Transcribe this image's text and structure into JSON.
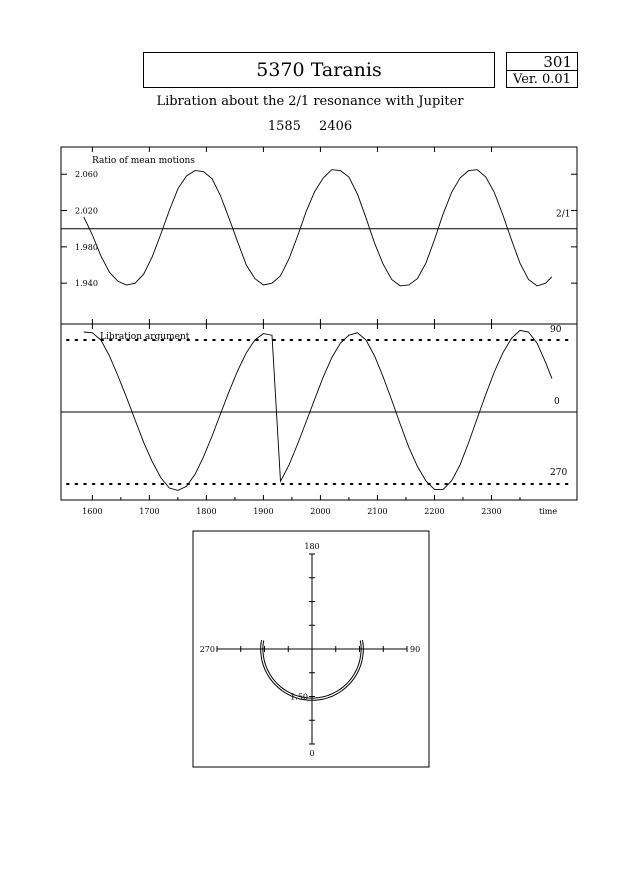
{
  "header": {
    "title": "5370 Taranis",
    "number": "301",
    "version": "Ver. 0.01",
    "subtitle": "Libration about the 2/1 resonance with Jupiter",
    "date_range": "1585 2406"
  },
  "chart_data": [
    {
      "type": "line",
      "panel": "ratio",
      "title": "Ratio of mean motions",
      "xlabel": "time",
      "xlim": [
        1545,
        2450
      ],
      "ylim": [
        1.895,
        2.09
      ],
      "ytick_labels": [
        "2.060",
        "2.020",
        "1.980",
        "1.940"
      ],
      "yticks": [
        2.06,
        2.02,
        1.98,
        1.94
      ],
      "reference_line": {
        "y": 2.0,
        "label": "2/1"
      },
      "series": [
        {
          "x": [
            1585,
            1600,
            1615,
            1630,
            1645,
            1660,
            1675,
            1690,
            1705,
            1720,
            1735,
            1750,
            1765,
            1780,
            1795,
            1810,
            1825,
            1840,
            1855,
            1870,
            1885,
            1900,
            1915,
            1930,
            1945,
            1960,
            1975,
            1990,
            2005,
            2020,
            2035,
            2050,
            2065,
            2080,
            2095,
            2110,
            2125,
            2140,
            2155,
            2170,
            2185,
            2200,
            2215,
            2230,
            2245,
            2260,
            2275,
            2290,
            2305,
            2320,
            2335,
            2350,
            2365,
            2380,
            2395,
            2406
          ],
          "values": [
            2.013,
            1.993,
            1.97,
            1.952,
            1.942,
            1.938,
            1.94,
            1.95,
            1.969,
            1.994,
            2.02,
            2.044,
            2.058,
            2.064,
            2.063,
            2.055,
            2.036,
            2.011,
            1.985,
            1.96,
            1.945,
            1.938,
            1.94,
            1.948,
            1.967,
            1.992,
            2.019,
            2.041,
            2.056,
            2.065,
            2.064,
            2.057,
            2.038,
            2.012,
            1.984,
            1.961,
            1.944,
            1.937,
            1.938,
            1.945,
            1.962,
            1.988,
            2.016,
            2.04,
            2.056,
            2.064,
            2.065,
            2.057,
            2.04,
            2.015,
            1.988,
            1.962,
            1.944,
            1.937,
            1.94,
            1.947
          ]
        }
      ]
    },
    {
      "type": "line",
      "panel": "argument",
      "title": "Libration argument",
      "xlabel": "time",
      "xlim": [
        1545,
        2450
      ],
      "xtick_labels": [
        "1600",
        "1700",
        "1800",
        "1900",
        "2000",
        "2100",
        "2200",
        "2300"
      ],
      "xticks": [
        1600,
        1700,
        1800,
        1900,
        2000,
        2100,
        2200,
        2300
      ],
      "ylim": [
        -110,
        110
      ],
      "reference_lines": [
        {
          "y": 90,
          "label": "90",
          "style": "dotted"
        },
        {
          "y": 0,
          "label": "0",
          "style": "solid"
        },
        {
          "y": -90,
          "label": "270",
          "style": "dotted"
        }
      ],
      "series": [
        {
          "x": [
            1585,
            1600,
            1615,
            1630,
            1645,
            1660,
            1675,
            1690,
            1705,
            1720,
            1735,
            1750,
            1765,
            1780,
            1795,
            1810,
            1825,
            1840,
            1855,
            1870,
            1885,
            1900,
            1915,
            1930,
            1945,
            1960,
            1975,
            1990,
            2005,
            2020,
            2035,
            2050,
            2065,
            2080,
            2095,
            2110,
            2125,
            2140,
            2155,
            2170,
            2185,
            2200,
            2215,
            2230,
            2245,
            2260,
            2275,
            2290,
            2305,
            2320,
            2335,
            2350,
            2365,
            2380,
            2395,
            2406
          ],
          "values": [
            100,
            99,
            90,
            70,
            45,
            18,
            -10,
            -38,
            -62,
            -82,
            -95,
            -98,
            -93,
            -78,
            -56,
            -30,
            -2,
            26,
            52,
            74,
            90,
            98,
            96,
            -86.6,
            -66,
            -40,
            -12,
            16,
            44,
            68,
            86,
            96,
            99,
            90,
            70,
            44,
            15,
            -15,
            -44,
            -68,
            -86,
            -97,
            -97,
            -86,
            -66,
            -38,
            -8,
            22,
            50,
            74,
            92,
            102,
            100,
            86,
            62,
            42
          ]
        }
      ]
    },
    {
      "type": "polar",
      "panel": "polar",
      "angle_labels": {
        "top": "180",
        "right": "90",
        "bottom": "0",
        "left": "270"
      },
      "radius_label": "1.50",
      "radius_value": 1.5,
      "radial_range": [
        0,
        3.0
      ],
      "arc_span_deg": [
        -100,
        100
      ],
      "arc_radii": [
        1.55,
        1.62
      ]
    }
  ]
}
